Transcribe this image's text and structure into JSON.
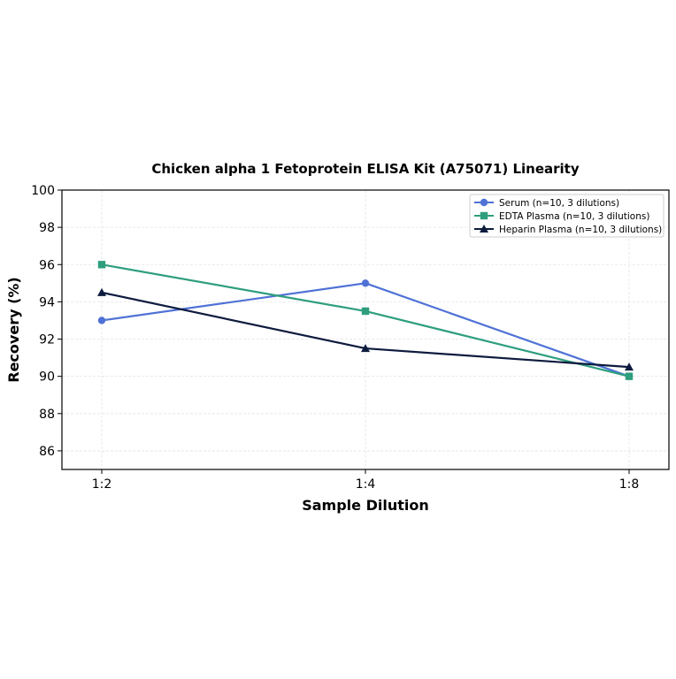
{
  "chart_data": {
    "type": "line",
    "title": "Chicken alpha 1 Fetoprotein ELISA Kit (A75071) Linearity",
    "xlabel": "Sample Dilution",
    "ylabel": "Recovery (%)",
    "categories": [
      "1:2",
      "1:4",
      "1:8"
    ],
    "ylim": [
      85,
      100
    ],
    "yticks": [
      86,
      88,
      90,
      92,
      94,
      96,
      98,
      100
    ],
    "grid": true,
    "legend_position": "top-right",
    "series": [
      {
        "name": "Serum (n=10, 3 dilutions)",
        "values": [
          93,
          95,
          90
        ],
        "color": "#4f72d6",
        "marker": "circle"
      },
      {
        "name": "EDTA Plasma (n=10, 3 dilutions)",
        "values": [
          96,
          93.5,
          90
        ],
        "color": "#2e9e7e",
        "marker": "square"
      },
      {
        "name": "Heparin Plasma (n=10, 3 dilutions)",
        "values": [
          94.5,
          91.5,
          90.5
        ],
        "color": "#0d1b3e",
        "marker": "triangle"
      }
    ]
  }
}
